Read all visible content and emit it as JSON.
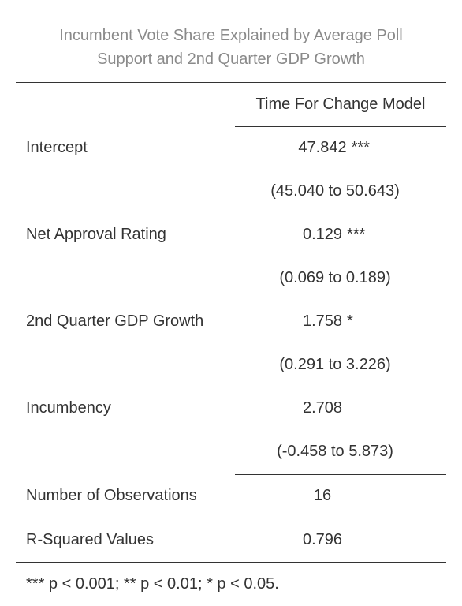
{
  "table": {
    "caption_lines": [
      "Incumbent Vote Share Explained by Average Poll",
      "Support and 2nd Quarter GDP Growth"
    ],
    "model_header": "Time For Change Model",
    "rows": [
      {
        "label": "Intercept",
        "estimate": "47.842",
        "stars": "***",
        "ci": "(45.040 to 50.643)"
      },
      {
        "label": "Net Approval Rating",
        "estimate": "0.129",
        "stars": "***",
        "ci": "(0.069 to 0.189)"
      },
      {
        "label": "2nd Quarter GDP Growth",
        "estimate": "1.758",
        "stars": "*",
        "ci": "(0.291 to 3.226)"
      },
      {
        "label": "Incumbency",
        "estimate": "2.708",
        "stars": "",
        "ci": "(-0.458 to 5.873)"
      }
    ],
    "stats": [
      {
        "label": "Number of Observations",
        "value": "16"
      },
      {
        "label": "R-Squared Values",
        "value": "0.796"
      }
    ],
    "footnote": "*** p < 0.001; ** p < 0.01; * p < 0.05."
  }
}
